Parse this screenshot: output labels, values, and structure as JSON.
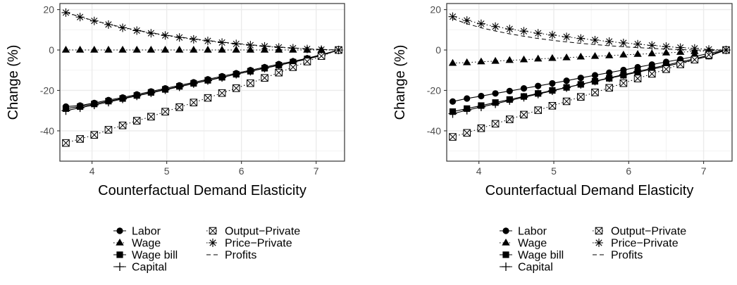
{
  "chart_data": [
    {
      "type": "line",
      "xlabel": "Counterfactual Demand Elasticity",
      "ylabel": "Change (%)",
      "xlim": [
        3.57,
        7.38
      ],
      "ylim": [
        -55,
        23
      ],
      "xticks": [
        4,
        5,
        6,
        7
      ],
      "yticks": [
        20,
        0,
        -20,
        -40
      ],
      "grid": true,
      "legend_position": "bottom",
      "x": [
        3.65,
        3.84,
        4.03,
        4.22,
        4.41,
        4.6,
        4.79,
        4.98,
        5.17,
        5.36,
        5.55,
        5.74,
        5.93,
        6.12,
        6.31,
        6.5,
        6.69,
        6.88,
        7.07,
        7.3
      ],
      "series": [
        {
          "name": "Labor",
          "line": "solid",
          "marker": "circle",
          "values": [
            -28,
            -27.5,
            -26.2,
            -24.8,
            -23.5,
            -22,
            -20.5,
            -19,
            -17.5,
            -16,
            -14.5,
            -13,
            -11.5,
            -10,
            -8.5,
            -7,
            -5.6,
            -4.1,
            -2.3,
            0
          ]
        },
        {
          "name": "Wage",
          "line": "dotted",
          "marker": "triangle",
          "values": [
            0,
            0,
            0,
            0,
            0,
            0,
            0,
            0,
            0,
            0,
            0,
            0,
            0,
            0,
            0,
            0,
            0,
            0,
            0,
            0
          ]
        },
        {
          "name": "Wage bill",
          "line": "solid",
          "marker": "square",
          "values": [
            -29,
            -28,
            -26.7,
            -25.3,
            -24,
            -22.5,
            -21,
            -19.5,
            -18,
            -16.5,
            -15,
            -13.5,
            -12,
            -10.5,
            -9,
            -7.5,
            -6,
            -4.4,
            -2.6,
            0
          ]
        },
        {
          "name": "Capital",
          "line": "solid",
          "marker": "plus",
          "values": [
            -30,
            -28.6,
            -27.2,
            -25.8,
            -24.2,
            -22.7,
            -21.2,
            -19.7,
            -18.2,
            -16.6,
            -15.1,
            -13.6,
            -12,
            -10.5,
            -9,
            -7.6,
            -6,
            -4.5,
            -2.7,
            0
          ]
        },
        {
          "name": "Output−Private",
          "line": "dotted",
          "marker": "boxcross",
          "values": [
            -46,
            -44,
            -42,
            -39.5,
            -37.3,
            -35,
            -33,
            -30.5,
            -28.3,
            -26,
            -23.7,
            -21.3,
            -18.9,
            -16.4,
            -13.8,
            -11.2,
            -8.5,
            -5.7,
            -3,
            0
          ]
        },
        {
          "name": "Price−Private",
          "line": "dotted",
          "marker": "asterisk",
          "values": [
            18.5,
            16.3,
            14.4,
            12.6,
            11,
            9.6,
            8.3,
            7.2,
            6.2,
            5.3,
            4.5,
            3.7,
            3,
            2.4,
            1.8,
            1.3,
            0.9,
            0.5,
            0.2,
            0
          ]
        },
        {
          "name": "Profits",
          "line": "dashed",
          "marker": "none",
          "values": [
            18.7,
            16.4,
            14.5,
            12.8,
            11.2,
            9.8,
            8.5,
            7.4,
            6.4,
            5.5,
            4.7,
            3.9,
            3.2,
            2.6,
            2,
            1.5,
            1,
            0.6,
            0.3,
            0
          ]
        }
      ],
      "legend": [
        "Labor",
        "Wage",
        "Wage bill",
        "Capital",
        "Output−Private",
        "Price−Private",
        "Profits"
      ]
    },
    {
      "type": "line",
      "xlabel": "Counterfactual Demand Elasticity",
      "ylabel": "Change (%)",
      "xlim": [
        3.57,
        7.38
      ],
      "ylim": [
        -55,
        23
      ],
      "xticks": [
        4,
        5,
        6,
        7
      ],
      "yticks": [
        20,
        0,
        -20,
        -40
      ],
      "grid": true,
      "legend_position": "bottom",
      "x": [
        3.65,
        3.84,
        4.03,
        4.22,
        4.41,
        4.6,
        4.79,
        4.98,
        5.17,
        5.36,
        5.55,
        5.74,
        5.93,
        6.12,
        6.31,
        6.5,
        6.69,
        6.88,
        7.07,
        7.3
      ],
      "series": [
        {
          "name": "Labor",
          "line": "solid",
          "marker": "circle",
          "values": [
            -25.5,
            -24,
            -22.8,
            -21.5,
            -20.3,
            -19,
            -17.8,
            -16.5,
            -15.2,
            -13.8,
            -12.5,
            -11.2,
            -9.9,
            -8.5,
            -7.2,
            -5.9,
            -4.6,
            -3.2,
            -1.7,
            0
          ]
        },
        {
          "name": "Wage",
          "line": "dotted",
          "marker": "triangle",
          "values": [
            -6.5,
            -6.2,
            -5.8,
            -5.5,
            -5.1,
            -4.8,
            -4.4,
            -4.1,
            -3.8,
            -3.4,
            -3.1,
            -2.8,
            -2.4,
            -2.1,
            -1.8,
            -1.4,
            -1.1,
            -0.7,
            -0.4,
            0
          ]
        },
        {
          "name": "Wage bill",
          "line": "solid",
          "marker": "square",
          "values": [
            -30.5,
            -29,
            -27.5,
            -26,
            -24.5,
            -23,
            -21.5,
            -20,
            -18.5,
            -17,
            -15.5,
            -14,
            -12.5,
            -11,
            -9.5,
            -8,
            -6.5,
            -4.8,
            -3,
            0
          ]
        },
        {
          "name": "Capital",
          "line": "solid",
          "marker": "plus",
          "values": [
            -31.5,
            -29.8,
            -28.2,
            -26.6,
            -25,
            -23.4,
            -21.8,
            -20.2,
            -18.6,
            -17,
            -15.4,
            -13.8,
            -12.2,
            -10.6,
            -9,
            -7.5,
            -5.9,
            -4.3,
            -2.6,
            0
          ]
        },
        {
          "name": "Output−Private",
          "line": "dotted",
          "marker": "boxcross",
          "values": [
            -43,
            -41,
            -38.7,
            -36.5,
            -34.3,
            -32,
            -29.8,
            -27.6,
            -25.4,
            -23.2,
            -21,
            -18.7,
            -16.4,
            -14.1,
            -11.8,
            -9.5,
            -7.1,
            -4.8,
            -2.4,
            0
          ]
        },
        {
          "name": "Price−Private",
          "line": "dotted",
          "marker": "asterisk",
          "values": [
            16.5,
            14.6,
            13,
            11.6,
            10.4,
            9.3,
            8.3,
            7.4,
            6.5,
            5.7,
            4.9,
            4.2,
            3.5,
            2.9,
            2.3,
            1.7,
            1.2,
            0.8,
            0.3,
            0
          ]
        },
        {
          "name": "Profits",
          "line": "dashed",
          "marker": "none",
          "values": [
            15.5,
            13,
            11,
            9.4,
            8,
            6.8,
            5.7,
            4.8,
            4,
            3.3,
            2.7,
            2.1,
            1.6,
            1.2,
            0.8,
            0.5,
            0.2,
            0,
            -0.1,
            0
          ]
        }
      ],
      "legend": [
        "Labor",
        "Wage",
        "Wage bill",
        "Capital",
        "Output−Private",
        "Price−Private",
        "Profits"
      ]
    }
  ]
}
